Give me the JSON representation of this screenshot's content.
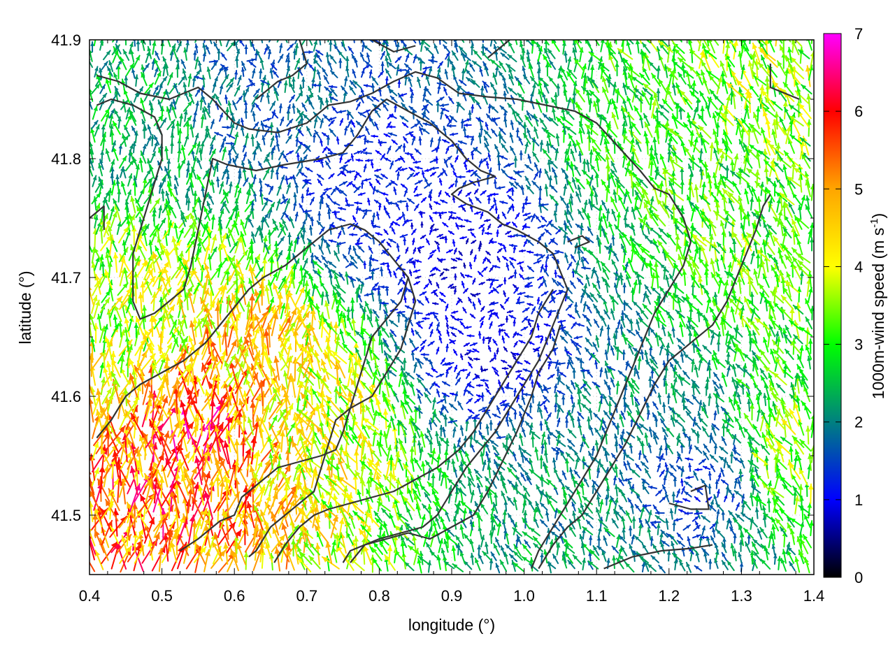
{
  "chart_data": {
    "type": "vector-field",
    "xlabel": "longitude (°)",
    "ylabel": "latitude (°)",
    "xlim": [
      0.4,
      1.4
    ],
    "ylim": [
      41.45,
      41.9
    ],
    "x_ticks": [
      0.4,
      0.5,
      0.6,
      0.7,
      0.8,
      0.9,
      1.0,
      1.1,
      1.2,
      1.3,
      1.4
    ],
    "x_tick_labels": [
      "0.4",
      "0.5",
      "0.6",
      "0.7",
      "0.8",
      "0.9",
      "1.0",
      "1.1",
      "1.2",
      "1.3",
      "1.4"
    ],
    "y_ticks": [
      41.5,
      41.6,
      41.7,
      41.8,
      41.9
    ],
    "y_tick_labels": [
      "41.5",
      "41.6",
      "41.7",
      "41.8",
      "41.9"
    ],
    "grid": true,
    "colorbar": {
      "label_main": "1000m-wind speed (m s",
      "label_sup": "-1",
      "label_close": ")",
      "range": [
        0,
        7
      ],
      "ticks": [
        0,
        1,
        2,
        3,
        4,
        5,
        6,
        7
      ],
      "tick_labels": [
        "0",
        "1",
        "2",
        "3",
        "4",
        "5",
        "6",
        "7"
      ],
      "palette": [
        "#000000",
        "#0000ff",
        "#008080",
        "#00ff00",
        "#ffff00",
        "#ffa500",
        "#ff0000",
        "#ff00ff"
      ]
    },
    "speed_regions": [
      {
        "lon": 0.55,
        "lat": 41.57,
        "speed": 5.6
      },
      {
        "lon": 0.46,
        "lat": 41.48,
        "speed": 5.3
      },
      {
        "lon": 0.6,
        "lat": 41.62,
        "speed": 4.6
      },
      {
        "lon": 0.7,
        "lat": 41.58,
        "speed": 4.0
      },
      {
        "lon": 0.45,
        "lat": 41.66,
        "speed": 3.6
      },
      {
        "lon": 0.9,
        "lat": 41.72,
        "speed": 0.8
      },
      {
        "lon": 0.95,
        "lat": 41.64,
        "speed": 0.9
      },
      {
        "lon": 0.78,
        "lat": 41.78,
        "speed": 1.2
      },
      {
        "lon": 1.2,
        "lat": 41.8,
        "speed": 3.0
      },
      {
        "lon": 1.35,
        "lat": 41.88,
        "speed": 3.6
      },
      {
        "lon": 1.32,
        "lat": 41.7,
        "speed": 3.2
      },
      {
        "lon": 1.25,
        "lat": 41.53,
        "speed": 1.4
      },
      {
        "lon": 1.05,
        "lat": 41.49,
        "speed": 2.2
      },
      {
        "lon": 1.38,
        "lat": 41.55,
        "speed": 3.6
      },
      {
        "lon": 0.62,
        "lat": 41.86,
        "speed": 1.8
      },
      {
        "lon": 0.45,
        "lat": 41.83,
        "speed": 2.4
      },
      {
        "lon": 1.18,
        "lat": 41.58,
        "speed": 2.0
      }
    ],
    "mean_direction_deg": 110,
    "contours": [
      [
        [
          0.41,
          41.87
        ],
        [
          0.44,
          41.865
        ],
        [
          0.47,
          41.855
        ],
        [
          0.51,
          41.85
        ],
        [
          0.53,
          41.855
        ],
        [
          0.55,
          41.86
        ],
        [
          0.57,
          41.85
        ],
        [
          0.6,
          41.83
        ],
        [
          0.62,
          41.825
        ],
        [
          0.66,
          41.822
        ],
        [
          0.7,
          41.83
        ],
        [
          0.73,
          41.845
        ],
        [
          0.76,
          41.848
        ],
        [
          0.79,
          41.855
        ],
        [
          0.82,
          41.865
        ],
        [
          0.85,
          41.873
        ],
        [
          0.88,
          41.868
        ],
        [
          0.91,
          41.855
        ],
        [
          0.95,
          41.852
        ],
        [
          0.99,
          41.85
        ],
        [
          1.03,
          41.845
        ],
        [
          1.07,
          41.84
        ],
        [
          1.1,
          41.83
        ],
        [
          1.13,
          41.81
        ],
        [
          1.16,
          41.79
        ],
        [
          1.18,
          41.775
        ],
        [
          1.2,
          41.77
        ],
        [
          1.22,
          41.75
        ],
        [
          1.23,
          41.73
        ],
        [
          1.22,
          41.71
        ],
        [
          1.2,
          41.69
        ],
        [
          1.18,
          41.67
        ],
        [
          1.16,
          41.64
        ],
        [
          1.14,
          41.61
        ],
        [
          1.12,
          41.58
        ],
        [
          1.1,
          41.55
        ],
        [
          1.08,
          41.53
        ],
        [
          1.06,
          41.51
        ],
        [
          1.04,
          41.49
        ],
        [
          1.02,
          41.47
        ],
        [
          1.01,
          41.455
        ]
      ],
      [
        [
          0.41,
          41.845
        ],
        [
          0.43,
          41.85
        ],
        [
          0.46,
          41.845
        ],
        [
          0.49,
          41.835
        ],
        [
          0.5,
          41.82
        ],
        [
          0.5,
          41.8
        ],
        [
          0.49,
          41.78
        ],
        [
          0.48,
          41.76
        ],
        [
          0.47,
          41.74
        ],
        [
          0.46,
          41.72
        ],
        [
          0.46,
          41.7
        ],
        [
          0.46,
          41.68
        ],
        [
          0.47,
          41.665
        ],
        [
          0.49,
          41.67
        ],
        [
          0.51,
          41.68
        ],
        [
          0.53,
          41.69
        ],
        [
          0.54,
          41.71
        ],
        [
          0.55,
          41.74
        ],
        [
          0.56,
          41.77
        ],
        [
          0.57,
          41.8
        ],
        [
          0.59,
          41.795
        ],
        [
          0.63,
          41.79
        ],
        [
          0.67,
          41.795
        ],
        [
          0.72,
          41.8
        ],
        [
          0.75,
          41.805
        ],
        [
          0.77,
          41.82
        ],
        [
          0.79,
          41.84
        ],
        [
          0.81,
          41.85
        ],
        [
          0.84,
          41.84
        ],
        [
          0.87,
          41.83
        ],
        [
          0.9,
          41.815
        ],
        [
          0.92,
          41.8
        ],
        [
          0.94,
          41.79
        ],
        [
          0.96,
          41.785
        ],
        [
          0.93,
          41.78
        ],
        [
          0.91,
          41.775
        ],
        [
          0.9,
          41.77
        ],
        [
          0.92,
          41.762
        ],
        [
          0.95,
          41.755
        ],
        [
          0.97,
          41.745
        ],
        [
          0.99,
          41.74
        ],
        [
          1.02,
          41.73
        ],
        [
          1.04,
          41.72
        ],
        [
          1.05,
          41.705
        ],
        [
          1.06,
          41.69
        ],
        [
          1.05,
          41.675
        ],
        [
          1.04,
          41.66
        ],
        [
          1.03,
          41.645
        ],
        [
          1.02,
          41.63
        ],
        [
          1.0,
          41.61
        ],
        [
          0.98,
          41.59
        ],
        [
          0.96,
          41.57
        ],
        [
          0.94,
          41.555
        ],
        [
          0.92,
          41.54
        ],
        [
          0.9,
          41.52
        ],
        [
          0.88,
          41.5
        ],
        [
          0.86,
          41.49
        ],
        [
          0.83,
          41.485
        ],
        [
          0.8,
          41.48
        ],
        [
          0.78,
          41.475
        ],
        [
          0.76,
          41.47
        ],
        [
          0.75,
          41.46
        ]
      ],
      [
        [
          0.41,
          41.565
        ],
        [
          0.43,
          41.58
        ],
        [
          0.45,
          41.6
        ],
        [
          0.47,
          41.61
        ],
        [
          0.5,
          41.62
        ],
        [
          0.53,
          41.63
        ],
        [
          0.56,
          41.645
        ],
        [
          0.58,
          41.66
        ],
        [
          0.6,
          41.675
        ],
        [
          0.62,
          41.69
        ],
        [
          0.64,
          41.7
        ],
        [
          0.67,
          41.71
        ],
        [
          0.69,
          41.72
        ],
        [
          0.71,
          41.73
        ],
        [
          0.73,
          41.74
        ],
        [
          0.76,
          41.745
        ],
        [
          0.78,
          41.74
        ],
        [
          0.8,
          41.73
        ],
        [
          0.82,
          41.715
        ],
        [
          0.84,
          41.7
        ],
        [
          0.85,
          41.68
        ],
        [
          0.84,
          41.66
        ],
        [
          0.83,
          41.64
        ],
        [
          0.81,
          41.62
        ],
        [
          0.79,
          41.6
        ],
        [
          0.76,
          41.59
        ],
        [
          0.74,
          41.58
        ],
        [
          0.73,
          41.56
        ],
        [
          0.72,
          41.54
        ],
        [
          0.71,
          41.52
        ],
        [
          0.69,
          41.51
        ],
        [
          0.67,
          41.5
        ],
        [
          0.65,
          41.49
        ],
        [
          0.64,
          41.48
        ],
        [
          0.63,
          41.47
        ],
        [
          0.62,
          41.465
        ]
      ],
      [
        [
          0.525,
          41.47
        ],
        [
          0.55,
          41.48
        ],
        [
          0.58,
          41.495
        ],
        [
          0.6,
          41.5
        ],
        [
          0.61,
          41.515
        ],
        [
          0.62,
          41.52
        ],
        [
          0.64,
          41.53
        ],
        [
          0.66,
          41.54
        ],
        [
          0.69,
          41.545
        ],
        [
          0.72,
          41.55
        ],
        [
          0.74,
          41.555
        ],
        [
          0.75,
          41.57
        ],
        [
          0.76,
          41.59
        ],
        [
          0.77,
          41.61
        ],
        [
          0.78,
          41.63
        ],
        [
          0.79,
          41.65
        ],
        [
          0.81,
          41.665
        ],
        [
          0.83,
          41.68
        ],
        [
          0.84,
          41.7
        ]
      ],
      [
        [
          0.655,
          41.46
        ],
        [
          0.67,
          41.475
        ],
        [
          0.69,
          41.49
        ],
        [
          0.71,
          41.5
        ],
        [
          0.73,
          41.505
        ],
        [
          0.76,
          41.51
        ],
        [
          0.79,
          41.515
        ],
        [
          0.82,
          41.52
        ],
        [
          0.85,
          41.53
        ],
        [
          0.88,
          41.54
        ],
        [
          0.91,
          41.555
        ],
        [
          0.93,
          41.57
        ],
        [
          0.95,
          41.59
        ],
        [
          0.97,
          41.61
        ],
        [
          0.99,
          41.63
        ],
        [
          1.01,
          41.65
        ],
        [
          1.02,
          41.67
        ],
        [
          1.04,
          41.69
        ]
      ],
      [
        [
          0.76,
          41.46
        ],
        [
          0.78,
          41.475
        ],
        [
          0.81,
          41.48
        ],
        [
          0.84,
          41.485
        ],
        [
          0.87,
          41.48
        ],
        [
          0.9,
          41.49
        ],
        [
          0.93,
          41.5
        ],
        [
          0.95,
          41.52
        ],
        [
          0.97,
          41.545
        ],
        [
          0.99,
          41.57
        ],
        [
          1.01,
          41.6
        ],
        [
          1.02,
          41.62
        ],
        [
          1.04,
          41.64
        ],
        [
          1.05,
          41.66
        ]
      ],
      [
        [
          1.02,
          41.455
        ],
        [
          1.04,
          41.475
        ],
        [
          1.06,
          41.49
        ],
        [
          1.08,
          41.5
        ],
        [
          1.1,
          41.52
        ],
        [
          1.12,
          41.54
        ],
        [
          1.14,
          41.56
        ],
        [
          1.16,
          41.585
        ],
        [
          1.18,
          41.61
        ],
        [
          1.2,
          41.63
        ],
        [
          1.22,
          41.64
        ],
        [
          1.24,
          41.65
        ],
        [
          1.26,
          41.66
        ],
        [
          1.28,
          41.68
        ],
        [
          1.3,
          41.71
        ],
        [
          1.32,
          41.74
        ],
        [
          1.33,
          41.76
        ],
        [
          1.34,
          41.77
        ]
      ],
      [
        [
          1.11,
          41.455
        ],
        [
          1.15,
          41.465
        ],
        [
          1.19,
          41.47
        ],
        [
          1.23,
          41.472
        ],
        [
          1.26,
          41.475
        ]
      ],
      [
        [
          1.23,
          41.52
        ],
        [
          1.25,
          41.525
        ],
        [
          1.255,
          41.505
        ],
        [
          1.23,
          41.505
        ],
        [
          1.2,
          41.51
        ]
      ],
      [
        [
          1.34,
          41.88
        ],
        [
          1.34,
          41.86
        ],
        [
          1.36,
          41.855
        ],
        [
          1.38,
          41.85
        ]
      ],
      [
        [
          0.4,
          41.75
        ],
        [
          0.42,
          41.76
        ],
        [
          0.42,
          41.74
        ]
      ],
      [
        [
          0.63,
          41.85
        ],
        [
          0.66,
          41.865
        ],
        [
          0.68,
          41.87
        ],
        [
          0.7,
          41.88
        ],
        [
          0.69,
          41.9
        ]
      ],
      [
        [
          0.79,
          41.9
        ],
        [
          0.82,
          41.89
        ],
        [
          0.85,
          41.895
        ]
      ],
      [
        [
          1.06,
          41.73
        ],
        [
          1.08,
          41.735
        ],
        [
          1.09,
          41.73
        ],
        [
          1.07,
          41.725
        ]
      ],
      [
        [
          0.95,
          41.885
        ],
        [
          0.98,
          41.9
        ]
      ]
    ]
  }
}
